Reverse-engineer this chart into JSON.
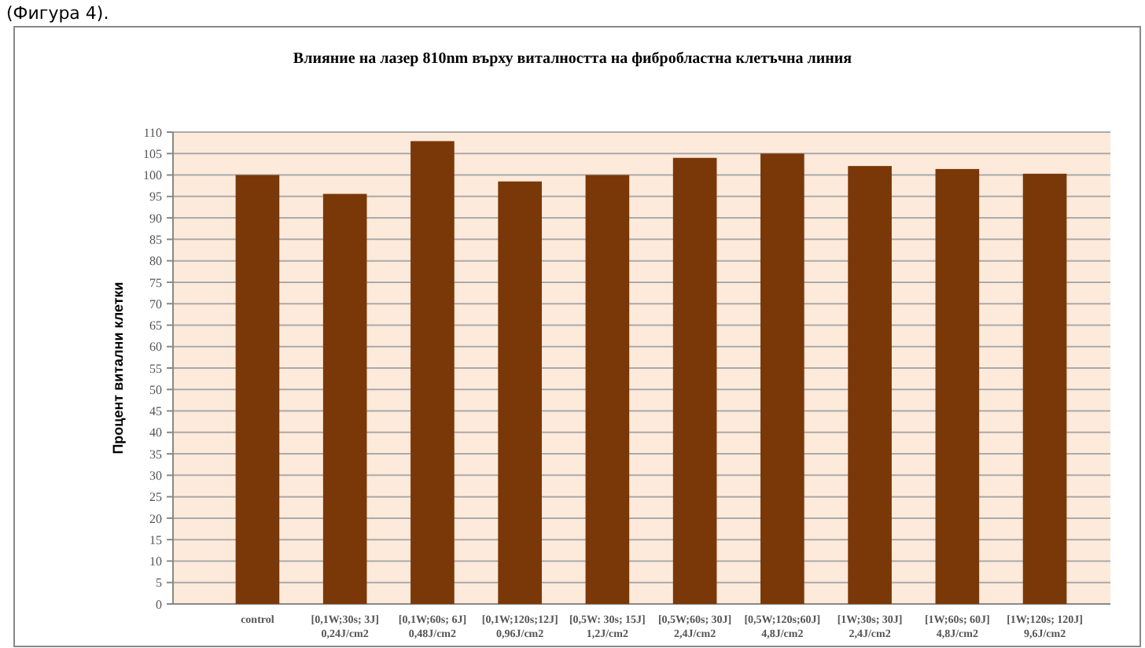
{
  "chart_data": {
    "type": "bar",
    "title": "Влияние на лазер 810nm върху виталността на фибробластна клетъчна линия",
    "ylabel": "Процент витални клетки",
    "annotations": [
      "(Фигура 4)."
    ],
    "categories": [
      "control",
      "[0,1W;30s; 3J]\n0,24J/cm2",
      "[0,1W;60s; 6J]\n0,48J/cm2",
      "[0,1W;120s;12J]\n0,96J/cm2",
      "[0,5W: 30s; 15J]\n1,2J/cm2",
      "[0,5W;60s; 30J]\n2,4J/cm2",
      "[0,5W;120s;60J]\n4,8J/cm2",
      "[1W;30s; 30J]\n2,4J/cm2",
      "[1W;60s; 60J]\n4,8J/cm2",
      "[1W;120s; 120J]\n9,6J/cm2"
    ],
    "values": [
      100,
      95.6,
      107.9,
      98.5,
      100,
      104,
      105,
      102.1,
      101.4,
      100.3
    ],
    "color": "#7a3808",
    "ylim": [
      0,
      110
    ],
    "yticks": [
      0,
      5,
      10,
      15,
      20,
      25,
      30,
      35,
      40,
      45,
      50,
      55,
      60,
      65,
      70,
      75,
      80,
      85,
      90,
      95,
      100,
      105,
      110
    ],
    "grid": "y"
  }
}
